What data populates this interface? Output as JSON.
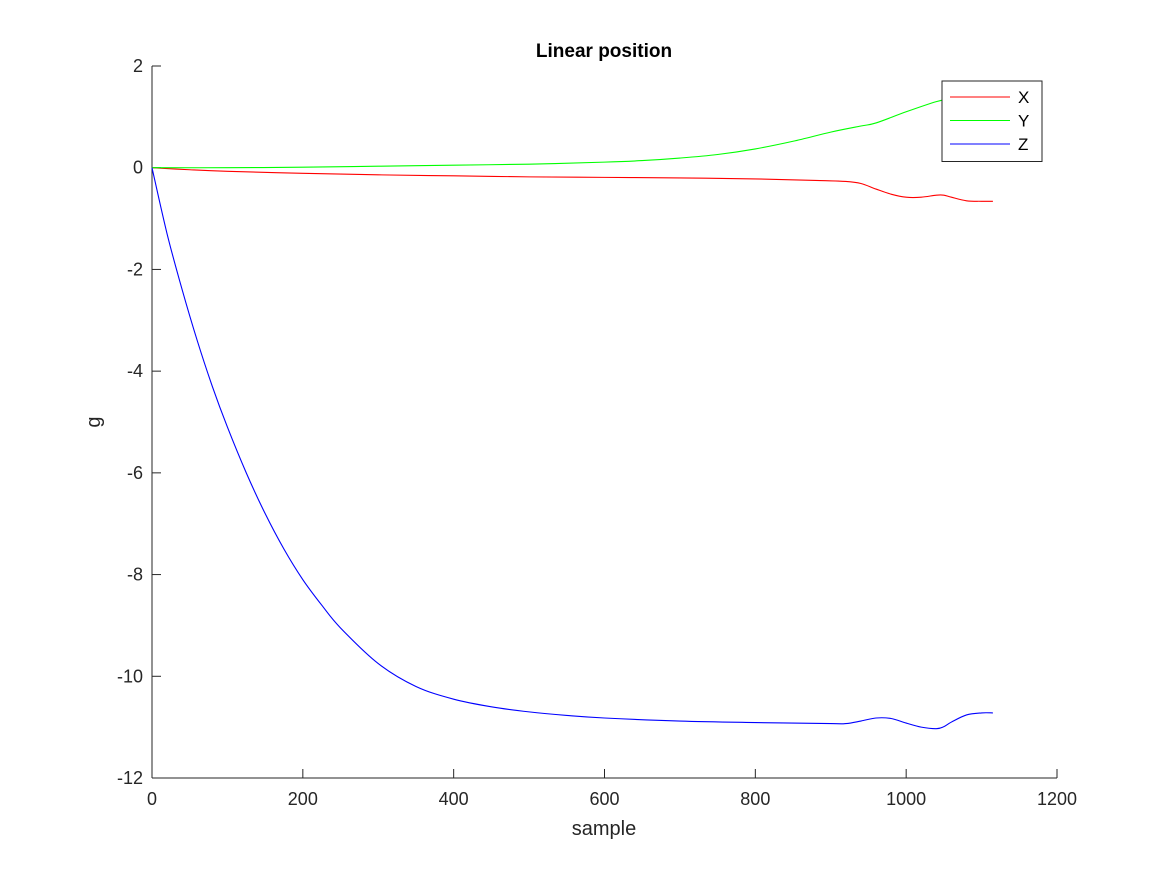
{
  "chart_data": {
    "type": "line",
    "title": "Linear position",
    "xlabel": "sample",
    "ylabel": "g",
    "xlim": [
      0,
      1200
    ],
    "ylim": [
      -12,
      2
    ],
    "xticks": [
      0,
      200,
      400,
      600,
      800,
      1000,
      1200
    ],
    "yticks": [
      -12,
      -10,
      -8,
      -6,
      -4,
      -2,
      0,
      2
    ],
    "xtick_labels": [
      "0",
      "200",
      "400",
      "600",
      "800",
      "1000",
      "1200"
    ],
    "ytick_labels": [
      "-12",
      "-10",
      "-8",
      "-6",
      "-4",
      "-2",
      "0",
      "2"
    ],
    "grid": false,
    "legend_position": "top-right",
    "series": [
      {
        "name": "X",
        "color": "#ff0000",
        "x": [
          0,
          50,
          100,
          200,
          300,
          400,
          500,
          600,
          700,
          800,
          880,
          920,
          940,
          960,
          980,
          1000,
          1020,
          1040,
          1050,
          1060,
          1080,
          1100,
          1115
        ],
        "y": [
          0,
          -0.04,
          -0.07,
          -0.11,
          -0.14,
          -0.16,
          -0.18,
          -0.19,
          -0.2,
          -0.22,
          -0.25,
          -0.27,
          -0.31,
          -0.42,
          -0.52,
          -0.58,
          -0.58,
          -0.54,
          -0.54,
          -0.58,
          -0.65,
          -0.66,
          -0.66
        ]
      },
      {
        "name": "Y",
        "color": "#00ff00",
        "x": [
          0,
          100,
          200,
          300,
          400,
          500,
          600,
          650,
          700,
          750,
          800,
          850,
          900,
          940,
          960,
          1000,
          1040,
          1060,
          1080,
          1115
        ],
        "y": [
          0,
          0,
          0.01,
          0.03,
          0.05,
          0.07,
          0.11,
          0.14,
          0.19,
          0.26,
          0.37,
          0.52,
          0.7,
          0.82,
          0.88,
          1.1,
          1.3,
          1.36,
          1.4,
          1.42
        ]
      },
      {
        "name": "Z",
        "color": "#0000ff",
        "x": [
          0,
          20,
          40,
          60,
          80,
          100,
          125,
          150,
          175,
          200,
          225,
          250,
          300,
          350,
          400,
          450,
          500,
          550,
          600,
          700,
          800,
          900,
          920,
          940,
          960,
          980,
          1000,
          1020,
          1040,
          1050,
          1060,
          1080,
          1100,
          1115
        ],
        "y": [
          0,
          -1.3,
          -2.4,
          -3.4,
          -4.3,
          -5.1,
          -6.0,
          -6.8,
          -7.5,
          -8.1,
          -8.6,
          -9.05,
          -9.75,
          -10.2,
          -10.45,
          -10.6,
          -10.7,
          -10.77,
          -10.82,
          -10.88,
          -10.91,
          -10.93,
          -10.93,
          -10.88,
          -10.82,
          -10.83,
          -10.92,
          -11.0,
          -11.03,
          -10.99,
          -10.9,
          -10.76,
          -10.72,
          -10.72
        ]
      }
    ]
  }
}
